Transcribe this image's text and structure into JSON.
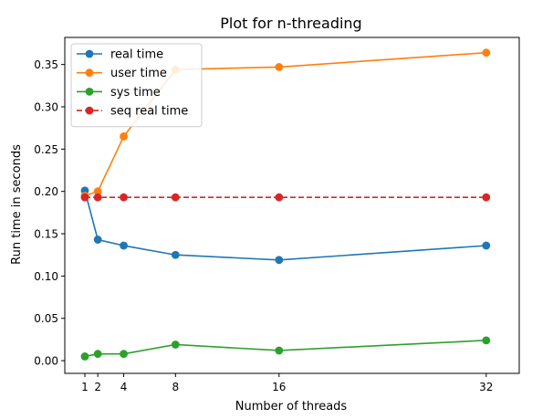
{
  "chart_data": {
    "type": "line",
    "title": "Plot for n-threading",
    "xlabel": "Number of threads",
    "ylabel": "Run time in seconds",
    "x": [
      1,
      2,
      4,
      8,
      16,
      32
    ],
    "xticks": [
      1,
      2,
      4,
      8,
      16,
      32
    ],
    "yticks": [
      0.0,
      0.05,
      0.1,
      0.15,
      0.2,
      0.25,
      0.3,
      0.35
    ],
    "xlim": [
      -0.55,
      34.55
    ],
    "ylim": [
      -0.015,
      0.382
    ],
    "grid": false,
    "legend_position": "upper-left",
    "series": [
      {
        "name": "real time",
        "color": "#1f77b4",
        "linestyle": "solid",
        "marker": "circle",
        "values": [
          0.201,
          0.143,
          0.136,
          0.125,
          0.119,
          0.136
        ]
      },
      {
        "name": "user time",
        "color": "#ff7f0e",
        "linestyle": "solid",
        "marker": "circle",
        "values": [
          0.195,
          0.2,
          0.265,
          0.344,
          0.347,
          0.364
        ]
      },
      {
        "name": "sys time",
        "color": "#2ca02c",
        "linestyle": "solid",
        "marker": "circle",
        "values": [
          0.005,
          0.008,
          0.008,
          0.019,
          0.012,
          0.024
        ]
      },
      {
        "name": "seq real time",
        "color": "#d62728",
        "linestyle": "dashed",
        "marker": "circle",
        "values": [
          0.193,
          0.193,
          0.193,
          0.193,
          0.193,
          0.193
        ]
      }
    ]
  }
}
